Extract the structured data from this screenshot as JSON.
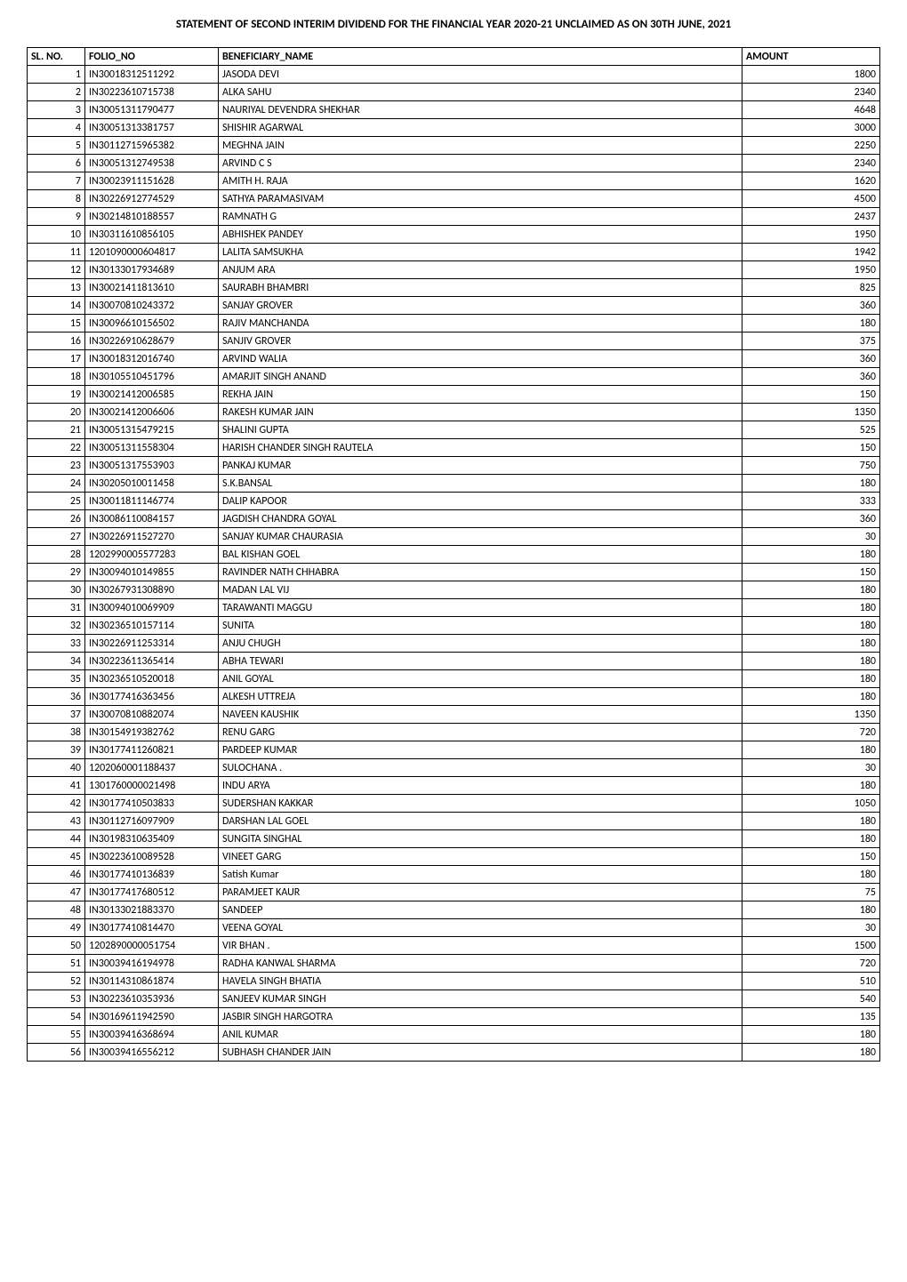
{
  "title": "STATEMENT OF  SECOND INTERIM DIVIDEND FOR THE FINANCIAL YEAR 2020-21 UNCLAIMED AS ON 30TH JUNE, 2021",
  "table": {
    "columns": [
      "SL. NO.",
      "FOLIO_NO",
      "BENEFICIARY_NAME",
      "AMOUNT"
    ],
    "column_widths": [
      "65px",
      "150px",
      "auto",
      "155px"
    ],
    "column_alignments": [
      "right",
      "left",
      "left",
      "right"
    ],
    "header_alignments": [
      "left",
      "left",
      "left",
      "left"
    ],
    "border_color": "#000000",
    "background_color": "#ffffff",
    "font_size": 12,
    "header_font_weight": "bold",
    "rows": [
      [
        1,
        "IN30018312511292",
        "JASODA DEVI",
        1800
      ],
      [
        2,
        "IN30223610715738",
        "ALKA SAHU",
        2340
      ],
      [
        3,
        "IN30051311790477",
        "NAURIYAL DEVENDRA SHEKHAR",
        4648
      ],
      [
        4,
        "IN30051313381757",
        "SHISHIR AGARWAL",
        3000
      ],
      [
        5,
        "IN30112715965382",
        "MEGHNA JAIN",
        2250
      ],
      [
        6,
        "IN30051312749538",
        "ARVIND C S",
        2340
      ],
      [
        7,
        "IN30023911151628",
        "AMITH   H. RAJA",
        1620
      ],
      [
        8,
        "IN30226912774529",
        "SATHYA PARAMASIVAM",
        4500
      ],
      [
        9,
        "IN30214810188557",
        "RAMNATH G",
        2437
      ],
      [
        10,
        "IN30311610856105",
        "ABHISHEK PANDEY",
        1950
      ],
      [
        11,
        "1201090000604817",
        "LALITA SAMSUKHA",
        1942
      ],
      [
        12,
        "IN30133017934689",
        "ANJUM ARA",
        1950
      ],
      [
        13,
        "IN30021411813610",
        "SAURABH BHAMBRI",
        825
      ],
      [
        14,
        "IN30070810243372",
        "SANJAY GROVER",
        360
      ],
      [
        15,
        "IN30096610156502",
        "RAJIV MANCHANDA",
        180
      ],
      [
        16,
        "IN30226910628679",
        "SANJIV GROVER",
        375
      ],
      [
        17,
        "IN30018312016740",
        "ARVIND WALIA",
        360
      ],
      [
        18,
        "IN30105510451796",
        "AMARJIT SINGH ANAND",
        360
      ],
      [
        19,
        "IN30021412006585",
        "REKHA JAIN",
        150
      ],
      [
        20,
        "IN30021412006606",
        "RAKESH KUMAR JAIN",
        1350
      ],
      [
        21,
        "IN30051315479215",
        "SHALINI  GUPTA",
        525
      ],
      [
        22,
        "IN30051311558304",
        "HARISH CHANDER SINGH RAUTELA",
        150
      ],
      [
        23,
        "IN30051317553903",
        "PANKAJ KUMAR",
        750
      ],
      [
        24,
        "IN30205010011458",
        "S.K.BANSAL",
        180
      ],
      [
        25,
        "IN30011811146774",
        "DALIP KAPOOR",
        333
      ],
      [
        26,
        "IN30086110084157",
        "JAGDISH CHANDRA GOYAL",
        360
      ],
      [
        27,
        "IN30226911527270",
        "SANJAY KUMAR CHAURASIA",
        30
      ],
      [
        28,
        "1202990005577283",
        "BAL KISHAN GOEL",
        180
      ],
      [
        29,
        "IN30094010149855",
        "RAVINDER NATH CHHABRA",
        150
      ],
      [
        30,
        "IN30267931308890",
        "MADAN LAL VIJ",
        180
      ],
      [
        31,
        "IN30094010069909",
        "TARAWANTI  MAGGU",
        180
      ],
      [
        32,
        "IN30236510157114",
        "SUNITA",
        180
      ],
      [
        33,
        "IN30226911253314",
        "ANJU CHUGH",
        180
      ],
      [
        34,
        "IN30223611365414",
        "ABHA TEWARI",
        180
      ],
      [
        35,
        "IN30236510520018",
        "ANIL GOYAL",
        180
      ],
      [
        36,
        "IN30177416363456",
        "ALKESH UTTREJA",
        180
      ],
      [
        37,
        "IN30070810882074",
        "NAVEEN KAUSHIK",
        1350
      ],
      [
        38,
        "IN30154919382762",
        "RENU GARG",
        720
      ],
      [
        39,
        "IN30177411260821",
        "PARDEEP KUMAR",
        180
      ],
      [
        40,
        "1202060001188437",
        "SULOCHANA .",
        30
      ],
      [
        41,
        "1301760000021498",
        "INDU ARYA",
        180
      ],
      [
        42,
        "IN30177410503833",
        "SUDERSHAN KAKKAR",
        1050
      ],
      [
        43,
        "IN30112716097909",
        "DARSHAN LAL GOEL",
        180
      ],
      [
        44,
        "IN30198310635409",
        "SUNGITA SINGHAL",
        180
      ],
      [
        45,
        "IN30223610089528",
        "VINEET GARG",
        150
      ],
      [
        46,
        "IN30177410136839",
        "Satish Kumar",
        180
      ],
      [
        47,
        "IN30177417680512",
        "PARAMJEET KAUR",
        75
      ],
      [
        48,
        "IN30133021883370",
        "SANDEEP",
        180
      ],
      [
        49,
        "IN30177410814470",
        "VEENA GOYAL",
        30
      ],
      [
        50,
        "1202890000051754",
        "VIR BHAN .",
        1500
      ],
      [
        51,
        "IN30039416194978",
        "RADHA KANWAL SHARMA",
        720
      ],
      [
        52,
        "IN30114310861874",
        "HAVELA SINGH BHATIA",
        510
      ],
      [
        53,
        "IN30223610353936",
        "SANJEEV KUMAR SINGH",
        540
      ],
      [
        54,
        "IN30169611942590",
        "JASBIR SINGH HARGOTRA",
        135
      ],
      [
        55,
        "IN30039416368694",
        "ANIL KUMAR",
        180
      ],
      [
        56,
        "IN30039416556212",
        "SUBHASH CHANDER JAIN",
        180
      ]
    ]
  }
}
